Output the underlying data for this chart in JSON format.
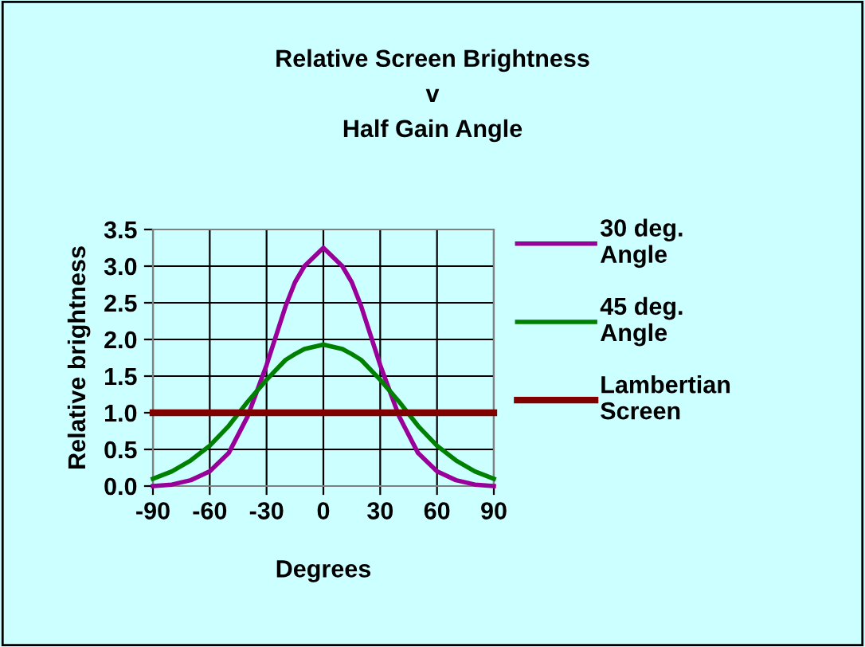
{
  "chart_data": {
    "type": "line",
    "title": "Relative Screen Brightness\nv\nHalf Gain Angle",
    "xlabel": "Degrees",
    "ylabel": "Relative brightness",
    "x": [
      -90,
      -80,
      -70,
      -60,
      -50,
      -40,
      -30,
      -20,
      -15,
      -10,
      0,
      10,
      15,
      20,
      30,
      40,
      50,
      60,
      70,
      80,
      90
    ],
    "series": [
      {
        "name": "30 deg.\nAngle",
        "color": "#990099",
        "values": [
          0.0,
          0.02,
          0.08,
          0.2,
          0.45,
          0.95,
          1.65,
          2.45,
          2.78,
          3.0,
          3.25,
          3.0,
          2.78,
          2.45,
          1.65,
          0.95,
          0.45,
          0.2,
          0.08,
          0.02,
          0.0
        ]
      },
      {
        "name": "45 deg.\nAngle",
        "color": "#008000",
        "values": [
          0.1,
          0.2,
          0.35,
          0.55,
          0.82,
          1.15,
          1.45,
          1.72,
          1.8,
          1.87,
          1.93,
          1.87,
          1.8,
          1.72,
          1.45,
          1.15,
          0.82,
          0.55,
          0.35,
          0.2,
          0.1
        ]
      },
      {
        "name": "Lambertian\nScreen",
        "color": "#800000",
        "values": [
          1.0,
          1.0,
          1.0,
          1.0,
          1.0,
          1.0,
          1.0,
          1.0,
          1.0,
          1.0,
          1.0,
          1.0,
          1.0,
          1.0,
          1.0,
          1.0,
          1.0,
          1.0,
          1.0,
          1.0,
          1.0
        ]
      }
    ],
    "xlim": [
      -90,
      90
    ],
    "xticks": [
      -90,
      -60,
      -30,
      0,
      30,
      60,
      90
    ],
    "ylim": [
      0,
      3.5
    ],
    "yticks": [
      {
        "value": 0,
        "label": "0.0"
      },
      {
        "value": 0.5,
        "label": "0.5"
      },
      {
        "value": 1,
        "label": "1.0"
      },
      {
        "value": 1.5,
        "label": "1.5"
      },
      {
        "value": 2,
        "label": "2.0"
      },
      {
        "value": 2.5,
        "label": "2.5"
      },
      {
        "value": 3,
        "label": "3.0"
      },
      {
        "value": 3.5,
        "label": "3.5"
      }
    ],
    "grid": true,
    "legend": "right",
    "marker": "none",
    "line_style": "solid"
  }
}
